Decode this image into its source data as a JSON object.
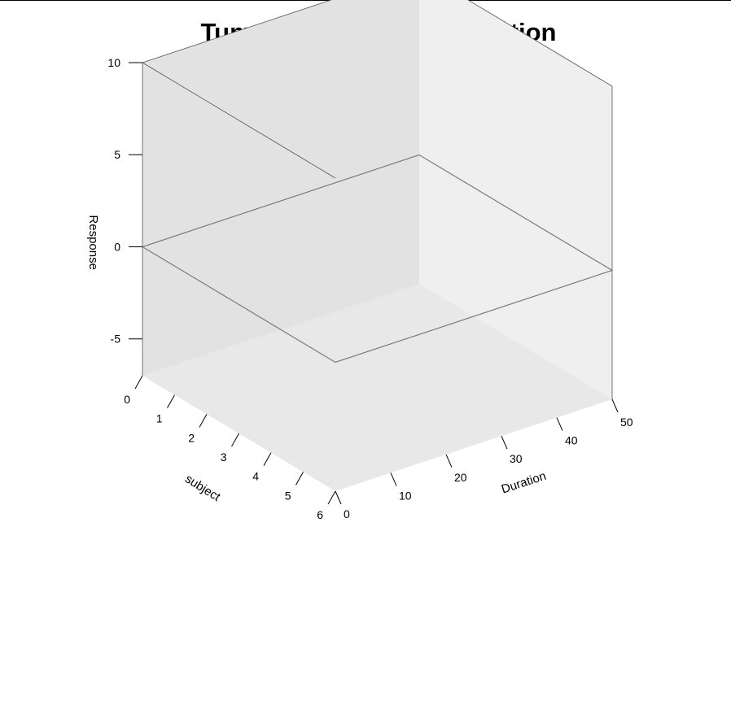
{
  "chart_data": {
    "type": "scatter",
    "projection": "3d",
    "title": "Tumor response and duration",
    "axes": {
      "x": {
        "label": "Duration",
        "range": [
          0,
          50
        ],
        "ticks": [
          0,
          10,
          20,
          30,
          40,
          50
        ]
      },
      "y": {
        "label": "subject",
        "range": [
          0,
          6
        ],
        "ticks": [
          0,
          1,
          2,
          3,
          4,
          5,
          6
        ]
      },
      "z": {
        "label": "Response",
        "range": [
          -7,
          10
        ],
        "ticks": [
          -5,
          0,
          5,
          10
        ]
      }
    },
    "reference_plane": {
      "axis": "z",
      "value": 0
    },
    "series": [],
    "grid": false,
    "legend": "none",
    "colors": {
      "back_wall": "#e2e2e2",
      "right_wall": "#efefef",
      "floor": "#e8e8e8",
      "reference_plane_edge": "#7a7a7a",
      "box_edge": "#555555"
    }
  }
}
